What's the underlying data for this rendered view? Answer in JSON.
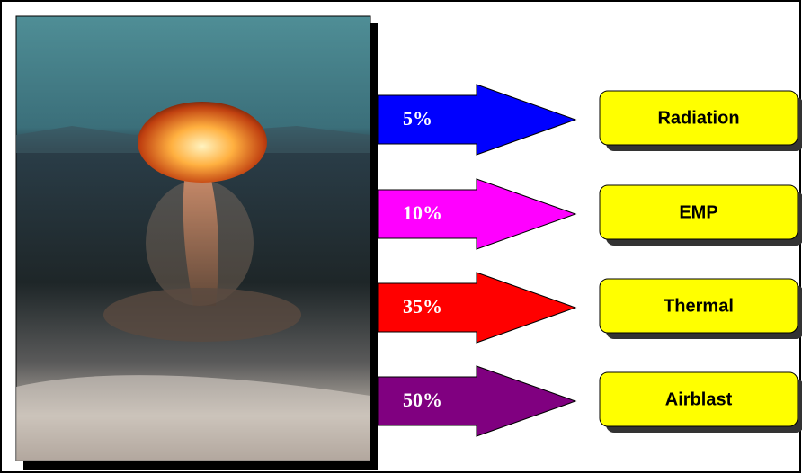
{
  "items": [
    {
      "percent": "5%",
      "label": "Radiation",
      "color": "#0000ff"
    },
    {
      "percent": "10%",
      "label": "EMP",
      "color": "#ff00ff"
    },
    {
      "percent": "35%",
      "label": "Thermal",
      "color": "#ff0000"
    },
    {
      "percent": "50%",
      "label": "Airblast",
      "color": "#800080"
    }
  ]
}
